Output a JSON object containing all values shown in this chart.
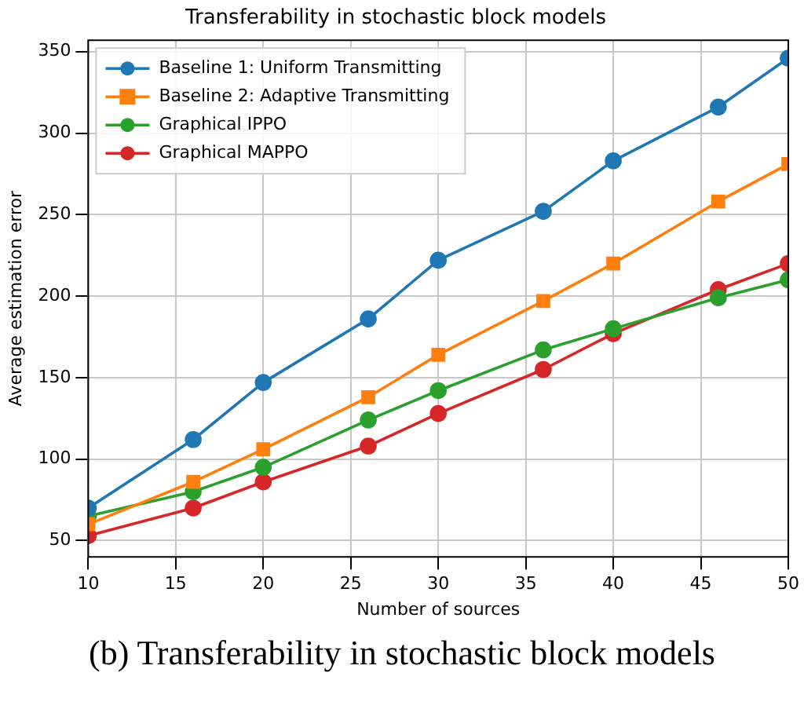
{
  "chart_data": {
    "type": "line",
    "title": "Transferability in stochastic block models",
    "xlabel": "Number of sources",
    "ylabel": "Average estimation error",
    "x": [
      10,
      16,
      20,
      26,
      30,
      36,
      40,
      46,
      50
    ],
    "series": [
      {
        "name": "Baseline 1: Uniform Transmitting",
        "color": "#1f77b4",
        "marker": "circle",
        "values": [
          70,
          112,
          147,
          186,
          222,
          252,
          283,
          316,
          346
        ]
      },
      {
        "name": "Baseline 2: Adaptive Transmitting",
        "color": "#ff7f0e",
        "marker": "square",
        "values": [
          60,
          86,
          106,
          138,
          164,
          197,
          220,
          258,
          281
        ]
      },
      {
        "name": "Graphical IPPO",
        "color": "#2ca02c",
        "marker": "circle",
        "values": [
          65,
          80,
          95,
          124,
          142,
          167,
          180,
          199,
          210
        ]
      },
      {
        "name": "Graphical MAPPO",
        "color": "#d62728",
        "marker": "circle",
        "values": [
          53,
          70,
          86,
          108,
          128,
          155,
          177,
          204,
          220
        ]
      }
    ],
    "xlim": [
      10,
      50
    ],
    "xticks": [
      10,
      15,
      20,
      25,
      30,
      35,
      40,
      45,
      50
    ],
    "ylim": [
      40,
      357
    ],
    "yticks": [
      50,
      100,
      150,
      200,
      250,
      300,
      350
    ],
    "grid": true,
    "legend": "top left",
    "line_style": "solid",
    "annotations": [
      "(b) Transferability in stochastic block models"
    ]
  }
}
